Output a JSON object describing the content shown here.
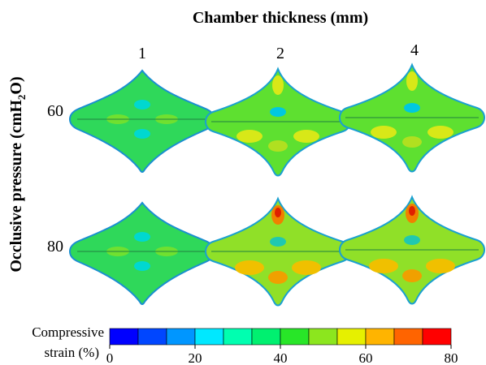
{
  "title": "Chamber thickness (mm)",
  "columns": [
    "1",
    "2",
    "4"
  ],
  "row_axis": {
    "label": "Occlusive pressure  (cmH",
    "sub": "2",
    "tail": "O)"
  },
  "rows": [
    "60",
    "80"
  ],
  "colorbar": {
    "label": [
      "Compressive",
      "strain (%)"
    ],
    "range": [
      0,
      80
    ],
    "ticks": [
      0,
      20,
      40,
      60,
      80
    ],
    "colors": [
      "#0000ff",
      "#0046ff",
      "#0096ff",
      "#00e8ff",
      "#00ffb0",
      "#00f070",
      "#28e628",
      "#8ce61e",
      "#e6f000",
      "#ffb400",
      "#ff6400",
      "#ff0000"
    ]
  }
}
